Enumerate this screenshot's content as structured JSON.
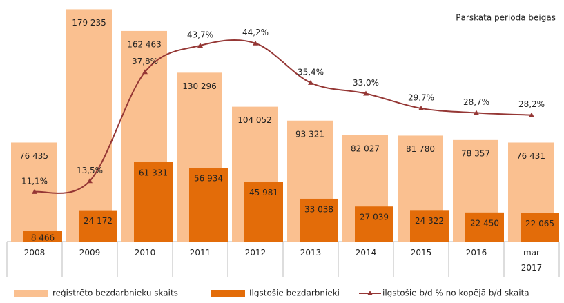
{
  "chart_data": {
    "type": "bar",
    "title": "Pārskata perioda beigās",
    "categories": [
      "2008",
      "2009",
      "2010",
      "2011",
      "2012",
      "2013",
      "2014",
      "2015",
      "2016",
      "mar\n2017"
    ],
    "ylim": [
      0,
      180000
    ],
    "y2lim": [
      0,
      52
    ],
    "series": [
      {
        "name": "reģistrēto bezdarbnieku skaits",
        "color": "#fac090",
        "values": [
          76435,
          179235,
          162463,
          130296,
          104052,
          93321,
          82027,
          81780,
          78357,
          76431
        ],
        "value_labels": [
          "76 435",
          "179 235",
          "162 463",
          "130 296",
          "104 052",
          "93 321",
          "82 027",
          "81 780",
          "78 357",
          "76 431"
        ]
      },
      {
        "name": "Ilgstošie bezdarbnieki",
        "color": "#e36c09",
        "values": [
          8466,
          24172,
          61331,
          56934,
          45981,
          33038,
          27039,
          24322,
          22450,
          22065
        ],
        "value_labels": [
          "8 466",
          "24 172",
          "61 331",
          "56 934",
          "45 981",
          "33 038",
          "27 039",
          "24 322",
          "22 450",
          "22 065"
        ]
      },
      {
        "name": "ilgstošie b/d % no kopējā b/d skaita",
        "color": "#953735",
        "type": "line",
        "axis": "y2",
        "values": [
          11.1,
          13.5,
          37.8,
          43.7,
          44.2,
          35.4,
          33.0,
          29.7,
          28.7,
          28.2
        ],
        "value_labels": [
          "11,1%",
          "13,5%",
          "37,8%",
          "43,7%",
          "44,2%",
          "35,4%",
          "33,0%",
          "29,7%",
          "28,7%",
          "28,2%"
        ]
      }
    ]
  }
}
